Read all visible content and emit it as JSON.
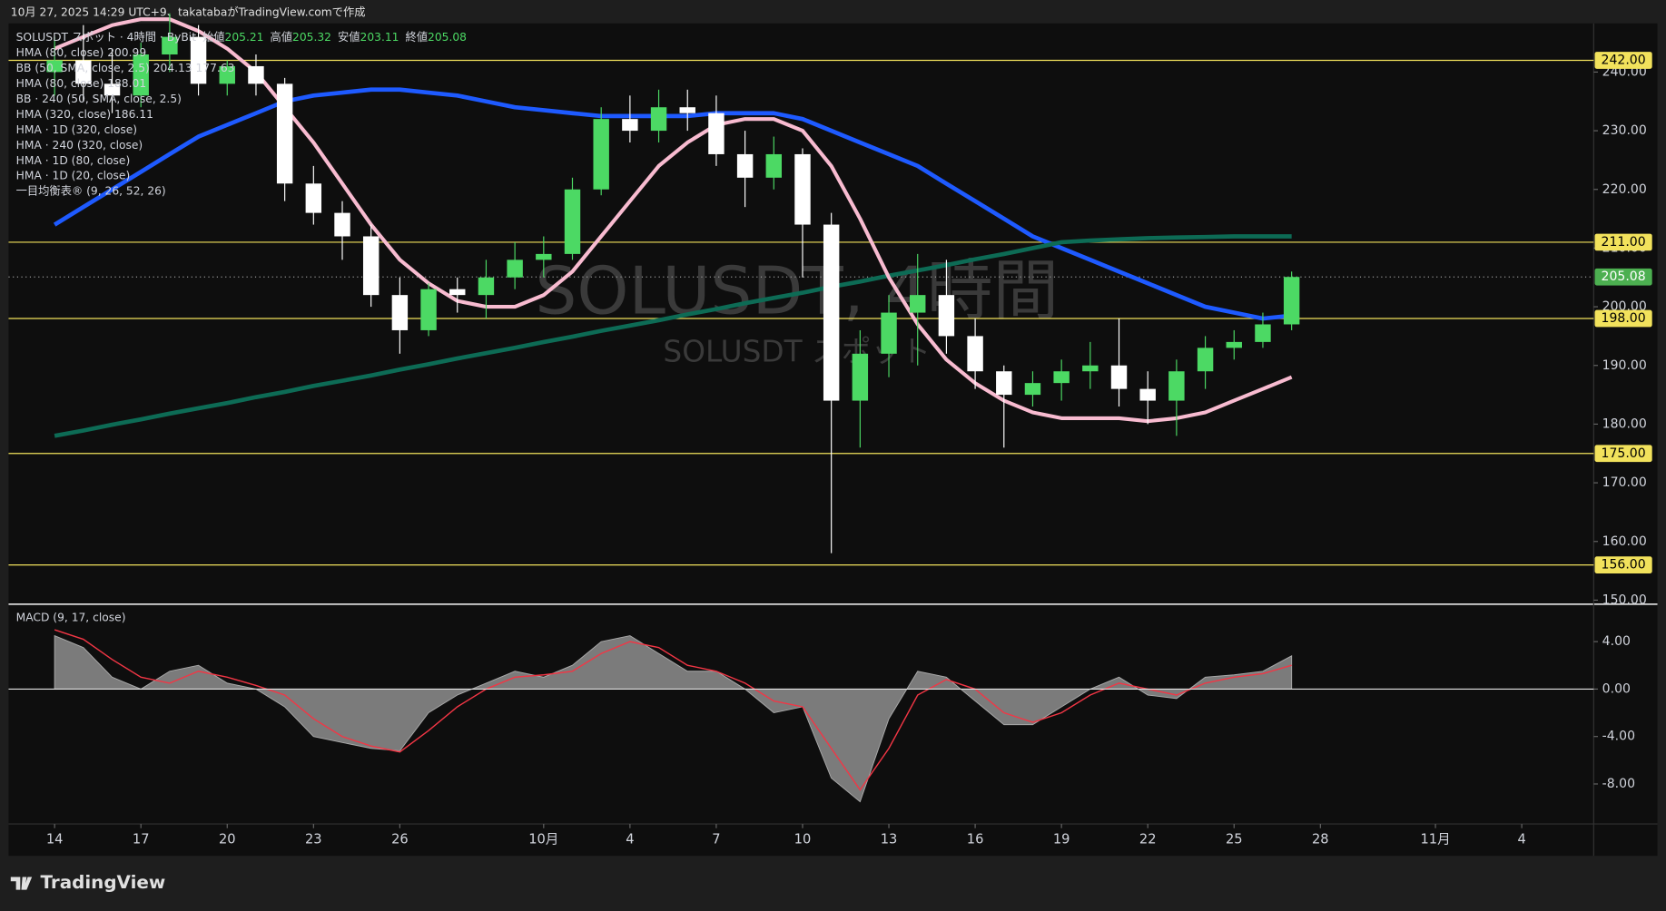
{
  "header": {
    "caption": "10月 27, 2025 14:29 UTC+9、takatabaがTradingView.comで作成"
  },
  "chart_data": [
    {
      "type": "candlestick",
      "title": "SOLUSDT, 4時間",
      "subtitle": "SOLUSDT スポット",
      "symbol_info": "SOLUSDT スポット · 4時間 · ByBit",
      "ohlc": [
        {
          "label": "始値",
          "value": 205.21
        },
        {
          "label": "高値",
          "value": 205.32
        },
        {
          "label": "安値",
          "value": 203.11
        },
        {
          "label": "終値",
          "value": 205.08
        }
      ],
      "legend": [
        "HMA (80, close) 200.99",
        "BB (50, SMA, close, 2.5) 204.13 177.63",
        "HMA (80, close) 188.01",
        "BB · 240 (50, SMA, close, 2.5)",
        "HMA (320, close) 186.11",
        "HMA · 1D (320, close)",
        "HMA · 240 (320, close)",
        "HMA · 1D (80, close)",
        "HMA · 1D (20, close)",
        "一目均衡表® (9, 26, 52, 26)"
      ],
      "x": [
        0,
        1,
        2,
        3,
        4,
        5,
        6,
        7,
        8,
        9,
        10,
        11,
        12,
        13,
        14,
        15,
        16,
        17,
        18,
        19,
        20,
        21,
        22,
        23,
        24,
        25,
        26,
        27,
        28,
        29,
        30,
        31,
        32,
        33,
        34,
        35,
        36,
        37,
        38,
        39,
        40,
        41,
        42,
        43
      ],
      "open": [
        240,
        242,
        238,
        236,
        243,
        246,
        238,
        241,
        238,
        221,
        216,
        212,
        202,
        196,
        203,
        202,
        205,
        208,
        209,
        220,
        232,
        230,
        234,
        233,
        226,
        222,
        226,
        214,
        184,
        192,
        199,
        202,
        195,
        189,
        185,
        187,
        189,
        190,
        186,
        184,
        189,
        193,
        194,
        197
      ],
      "high": [
        246,
        248,
        244,
        245,
        250,
        248,
        242,
        243,
        239,
        224,
        218,
        214,
        205,
        204,
        205,
        208,
        211,
        212,
        222,
        234,
        236,
        237,
        237,
        236,
        230,
        229,
        227,
        216,
        196,
        202,
        209,
        208,
        198,
        190,
        189,
        191,
        194,
        198,
        189,
        191,
        195,
        196,
        199,
        206
      ],
      "low": [
        236,
        235,
        233,
        234,
        240,
        236,
        236,
        236,
        218,
        214,
        208,
        200,
        192,
        195,
        199,
        198,
        203,
        205,
        208,
        219,
        228,
        228,
        230,
        224,
        217,
        220,
        205,
        158,
        176,
        188,
        190,
        192,
        186,
        176,
        183,
        184,
        186,
        183,
        180,
        178,
        186,
        191,
        193,
        196
      ],
      "close": [
        242,
        238,
        236,
        243,
        246,
        238,
        241,
        238,
        221,
        216,
        212,
        202,
        196,
        203,
        202,
        205,
        208,
        209,
        220,
        232,
        230,
        234,
        233,
        226,
        222,
        226,
        214,
        184,
        192,
        199,
        202,
        195,
        189,
        185,
        187,
        189,
        190,
        186,
        184,
        189,
        193,
        194,
        197,
        205.08
      ],
      "up_color": "#4cd964",
      "down_color": "#ffffff",
      "series": [
        {
          "color": "#1e5aff",
          "line_width": 4,
          "values": [
            214,
            217,
            220,
            223,
            226,
            229,
            231,
            233,
            235,
            236,
            236.5,
            237,
            237,
            236.5,
            236,
            235,
            234,
            233.5,
            233,
            232.5,
            232.5,
            232.5,
            232.5,
            233,
            233,
            233,
            232,
            230,
            228,
            226,
            224,
            221,
            218,
            215,
            212,
            210,
            208,
            206,
            204,
            202,
            200,
            199,
            198,
            198.5
          ]
        },
        {
          "color": "#0d6b55",
          "line_width": 4,
          "values": [
            178,
            178.9,
            179.9,
            180.8,
            181.8,
            182.7,
            183.6,
            184.6,
            185.5,
            186.5,
            187.4,
            188.3,
            189.3,
            190.2,
            191.2,
            192.1,
            193,
            194,
            194.9,
            195.9,
            196.8,
            197.7,
            198.7,
            199.6,
            200.6,
            201.5,
            202.4,
            203.4,
            204.3,
            205.3,
            206.2,
            207.1,
            208.1,
            209,
            210,
            211,
            211.3,
            211.5,
            211.7,
            211.8,
            211.9,
            212,
            212,
            212
          ]
        },
        {
          "color": "#f8bbd0",
          "line_width": 3.5,
          "values": [
            244,
            246,
            248,
            249,
            249,
            247,
            244,
            240,
            234,
            228,
            221,
            214,
            208,
            204,
            201,
            200,
            200,
            202,
            206,
            212,
            218,
            224,
            228,
            231,
            232,
            232,
            230,
            224,
            215,
            205,
            197,
            191,
            187,
            184,
            182,
            181,
            181,
            181,
            180.5,
            181,
            182,
            184,
            186,
            188
          ]
        }
      ],
      "xlim": [
        -1.6,
        53.5
      ],
      "xticks": [
        {
          "value": 0,
          "label": "14"
        },
        {
          "value": 3,
          "label": "17"
        },
        {
          "value": 6,
          "label": "20"
        },
        {
          "value": 9,
          "label": "23"
        },
        {
          "value": 12,
          "label": "26"
        },
        {
          "value": 17,
          "label": "10月"
        },
        {
          "value": 20,
          "label": "4"
        },
        {
          "value": 23,
          "label": "7"
        },
        {
          "value": 26,
          "label": "10"
        },
        {
          "value": 29,
          "label": "13"
        },
        {
          "value": 32,
          "label": "16"
        },
        {
          "value": 35,
          "label": "19"
        },
        {
          "value": 38,
          "label": "22"
        },
        {
          "value": 41,
          "label": "25"
        },
        {
          "value": 44,
          "label": "28"
        },
        {
          "value": 48,
          "label": "11月"
        },
        {
          "value": 51,
          "label": "4"
        }
      ],
      "ylim": [
        149.5,
        248.3
      ],
      "yticks": [
        {
          "value": 150,
          "label": "150.00"
        },
        {
          "value": 160,
          "label": "160.00"
        },
        {
          "value": 170,
          "label": "170.00"
        },
        {
          "value": 180,
          "label": "180.00"
        },
        {
          "value": 190,
          "label": "190.00"
        },
        {
          "value": 200,
          "label": "200.00"
        },
        {
          "value": 210,
          "label": "210.00"
        },
        {
          "value": 220,
          "label": "220.00"
        },
        {
          "value": 230,
          "label": "230.00"
        },
        {
          "value": 240,
          "label": "240.00"
        }
      ],
      "levels": [
        {
          "value": 242,
          "label": "242.00"
        },
        {
          "value": 211,
          "label": "211.00"
        },
        {
          "value": 198,
          "label": "198.00"
        },
        {
          "value": 175,
          "label": "175.00"
        },
        {
          "value": 156,
          "label": "156.00"
        }
      ],
      "level_color": "#f2e25c",
      "last_price": {
        "value": 205.08,
        "label": "205.08"
      },
      "last_price_color": "#4caf50"
    },
    {
      "type": "macd",
      "title": "MACD (9, 17, close)",
      "x": [
        0,
        1,
        2,
        3,
        4,
        5,
        6,
        7,
        8,
        9,
        10,
        11,
        12,
        13,
        14,
        15,
        16,
        17,
        18,
        19,
        20,
        21,
        22,
        23,
        24,
        25,
        26,
        27,
        28,
        29,
        30,
        31,
        32,
        33,
        34,
        35,
        36,
        37,
        38,
        39,
        40,
        41,
        42,
        43
      ],
      "series": [
        {
          "color": "#7b7b7b",
          "values": [
            4.5,
            3.5,
            1,
            0,
            1.5,
            2,
            0.5,
            0,
            -1.5,
            -4,
            -4.5,
            -5,
            -5.2,
            -2,
            -0.5,
            0.5,
            1.5,
            1,
            2,
            4,
            4.5,
            3,
            1.5,
            1.5,
            0,
            -2,
            -1.5,
            -7.5,
            -9.5,
            -2.5,
            1.5,
            1,
            -1,
            -3,
            -3,
            -1.5,
            0,
            1,
            -0.5,
            -0.8,
            1,
            1.2,
            1.5,
            2.8
          ]
        },
        {
          "color": "#f23645",
          "values": [
            5,
            4.2,
            2.5,
            1,
            0.5,
            1.5,
            1,
            0.3,
            -0.5,
            -2.5,
            -4,
            -4.8,
            -5.3,
            -3.5,
            -1.5,
            0,
            1,
            1.2,
            1.5,
            3,
            4,
            3.5,
            2,
            1.5,
            0.5,
            -1,
            -1.5,
            -5,
            -8.5,
            -5,
            -0.5,
            0.8,
            0,
            -2,
            -2.8,
            -2,
            -0.5,
            0.5,
            0,
            -0.5,
            0.5,
            1,
            1.3,
            2
          ]
        }
      ],
      "xlim": [
        -1.6,
        53.5
      ],
      "ylim": [
        -11.37,
        7.07
      ],
      "yticks": [
        {
          "value": 4,
          "label": "4.00"
        },
        {
          "value": 0,
          "label": "0.00"
        },
        {
          "value": -4,
          "label": "-4.00"
        },
        {
          "value": -8,
          "label": "-8.00"
        }
      ]
    }
  ],
  "footer": {
    "logo": "TradingView"
  }
}
